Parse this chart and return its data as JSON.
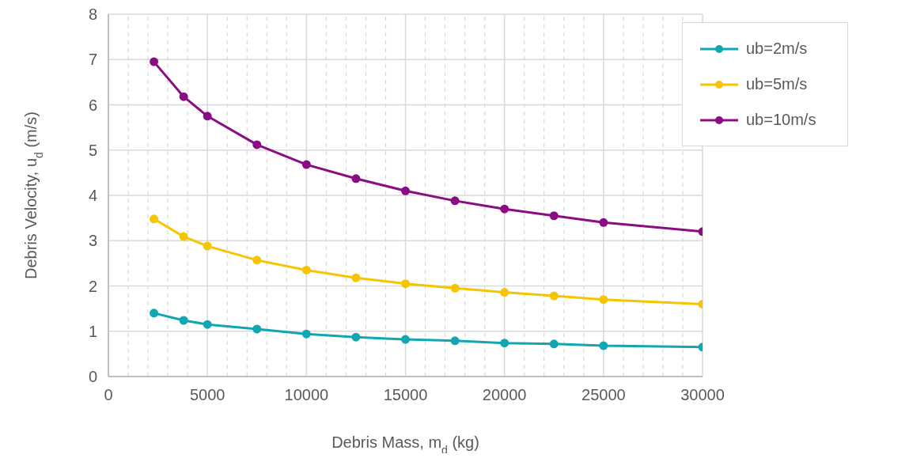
{
  "chart_data": {
    "type": "line",
    "xlabel": "Debris Mass, m$_{d}$ (kg)",
    "ylabel": "Debris Velocity, u$_{d}$ (m/s)",
    "x": [
      2300,
      3800,
      5000,
      7500,
      10000,
      12500,
      15000,
      17500,
      20000,
      22500,
      25000,
      30000
    ],
    "series": [
      {
        "name": "ub=2m/s",
        "color": "#12a6b0",
        "values": [
          1.4,
          1.24,
          1.15,
          1.05,
          0.94,
          0.87,
          0.82,
          0.79,
          0.74,
          0.72,
          0.68,
          0.65
        ]
      },
      {
        "name": "ub=5m/s",
        "color": "#f6c500",
        "values": [
          3.48,
          3.09,
          2.88,
          2.57,
          2.35,
          2.18,
          2.05,
          1.95,
          1.86,
          1.78,
          1.7,
          1.6
        ]
      },
      {
        "name": "ub=10m/s",
        "color": "#8b0d84",
        "values": [
          6.95,
          6.18,
          5.75,
          5.12,
          4.68,
          4.37,
          4.1,
          3.88,
          3.7,
          3.55,
          3.4,
          3.2
        ]
      }
    ],
    "xlim": [
      0,
      30000
    ],
    "xticks": [
      0,
      5000,
      10000,
      15000,
      20000,
      25000,
      30000
    ],
    "ylim": [
      0,
      8
    ],
    "yticks": [
      0,
      1,
      2,
      3,
      4,
      5,
      6,
      7,
      8
    ],
    "grid": true,
    "legend": "top right",
    "marker": "circle",
    "line_style": "solid"
  }
}
